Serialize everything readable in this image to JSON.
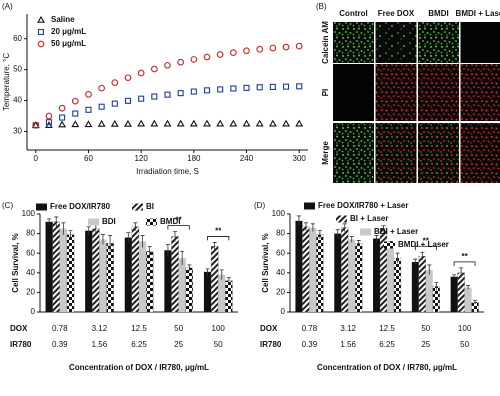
{
  "chart_data": [
    {
      "type": "scatter",
      "panel_label": "(A)",
      "x_label": "Irradiation time, S",
      "y_label": "Temperature, °C",
      "x": [
        0,
        15,
        30,
        45,
        60,
        75,
        90,
        105,
        120,
        135,
        150,
        165,
        180,
        195,
        210,
        225,
        240,
        255,
        270,
        285,
        300
      ],
      "xlim": [
        -10,
        310
      ],
      "xticks": [
        0,
        60,
        120,
        180,
        240,
        300
      ],
      "ylim": [
        24,
        68
      ],
      "yticks": [
        30,
        40,
        50,
        60
      ],
      "legend": "top-left",
      "series": [
        {
          "name": "Saline",
          "color": "#111111",
          "marker": "triangle",
          "values": [
            32,
            32,
            32.2,
            32.3,
            32.3,
            32.4,
            32.4,
            32.4,
            32.5,
            32.5,
            32.5,
            32.5,
            32.5,
            32.5,
            32.5,
            32.5,
            32.5,
            32.5,
            32.5,
            32.5,
            32.5
          ]
        },
        {
          "name": "20 μg/mL",
          "color": "#1f3c99",
          "marker": "square",
          "values": [
            32,
            33,
            34.5,
            35.8,
            37,
            38,
            39,
            39.9,
            40.6,
            41.3,
            41.9,
            42.4,
            42.9,
            43.3,
            43.6,
            43.9,
            44.1,
            44.3,
            44.4,
            44.5,
            44.6
          ]
        },
        {
          "name": "50 μg/mL",
          "color": "#cc2222",
          "marker": "circle",
          "values": [
            32,
            35,
            37.5,
            39.8,
            42,
            44,
            45.8,
            47.4,
            48.9,
            50.2,
            51.4,
            52.4,
            53.3,
            54.1,
            54.9,
            55.5,
            56.1,
            56.6,
            57,
            57.3,
            57.6
          ]
        }
      ]
    },
    {
      "type": "bar",
      "panel_label": "(C)",
      "x_label": "Concentration of DOX / IR780, μg/mL",
      "y_label": "Cell Survival, %",
      "category_rows": [
        {
          "label": "DOX",
          "values": [
            "0.78",
            "3.12",
            "12.5",
            "50",
            "100"
          ]
        },
        {
          "label": "IR780",
          "values": [
            "0.39",
            "1.56",
            "6.25",
            "25",
            "50"
          ]
        }
      ],
      "ylim": [
        0,
        100
      ],
      "yticks": [
        0,
        20,
        40,
        60,
        80,
        100
      ],
      "annotations": [
        "**",
        "**"
      ],
      "series": [
        {
          "name": "Free DOX/IR780",
          "color": "#111111",
          "pattern": "solid",
          "values": [
            92,
            83,
            76,
            63,
            41
          ],
          "errors": [
            3,
            4,
            5,
            6,
            3
          ]
        },
        {
          "name": "BI",
          "color": "#111111",
          "pattern": "hatch",
          "values": [
            92,
            85,
            87,
            77,
            67
          ],
          "errors": [
            5,
            4,
            4,
            5,
            4
          ]
        },
        {
          "name": "BDI",
          "color": "#c8c8c8",
          "pattern": "solid",
          "values": [
            85,
            74,
            72,
            55,
            38
          ],
          "errors": [
            6,
            5,
            6,
            7,
            5
          ]
        },
        {
          "name": "BMDI",
          "color": "#111111",
          "pattern": "checker",
          "values": [
            79,
            70,
            62,
            45,
            32
          ],
          "errors": [
            4,
            8,
            5,
            3,
            3
          ]
        }
      ]
    },
    {
      "type": "bar",
      "panel_label": "(D)",
      "x_label": "Concentration of DOX / IR780, μg/mL",
      "y_label": "Cell Survival, %",
      "category_rows": [
        {
          "label": "DOX",
          "values": [
            "0.78",
            "3.12",
            "12.5",
            "50",
            "100"
          ]
        },
        {
          "label": "IR780",
          "values": [
            "0.39",
            "1.56",
            "6.25",
            "25",
            "50"
          ]
        }
      ],
      "ylim": [
        0,
        100
      ],
      "yticks": [
        0,
        20,
        40,
        60,
        80,
        100
      ],
      "annotations": [
        "**",
        "**"
      ],
      "series": [
        {
          "name": "Free DOX/IR780 + Laser",
          "color": "#111111",
          "pattern": "solid",
          "values": [
            93,
            80,
            75,
            51,
            36
          ],
          "errors": [
            5,
            4,
            3,
            3,
            2
          ]
        },
        {
          "name": "BI + Laser",
          "color": "#111111",
          "pattern": "hatch",
          "values": [
            87,
            86,
            85,
            57,
            40
          ],
          "errors": [
            4,
            4,
            3,
            4,
            5
          ]
        },
        {
          "name": "BDI + Laser",
          "color": "#c8c8c8",
          "pattern": "solid",
          "values": [
            86,
            74,
            69,
            43,
            25
          ],
          "errors": [
            4,
            3,
            3,
            5,
            2
          ]
        },
        {
          "name": "BMDI + Laser",
          "color": "#111111",
          "pattern": "checker",
          "values": [
            79,
            70,
            55,
            26,
            10
          ],
          "errors": [
            4,
            3,
            5,
            4,
            2
          ]
        }
      ]
    }
  ],
  "image_panel": {
    "panel_label": "(B)",
    "columns": [
      "Control",
      "Free DOX",
      "BMDI",
      "BMDI + Laser"
    ],
    "rows": [
      "Calcein AM",
      "PI",
      "Merge"
    ]
  }
}
